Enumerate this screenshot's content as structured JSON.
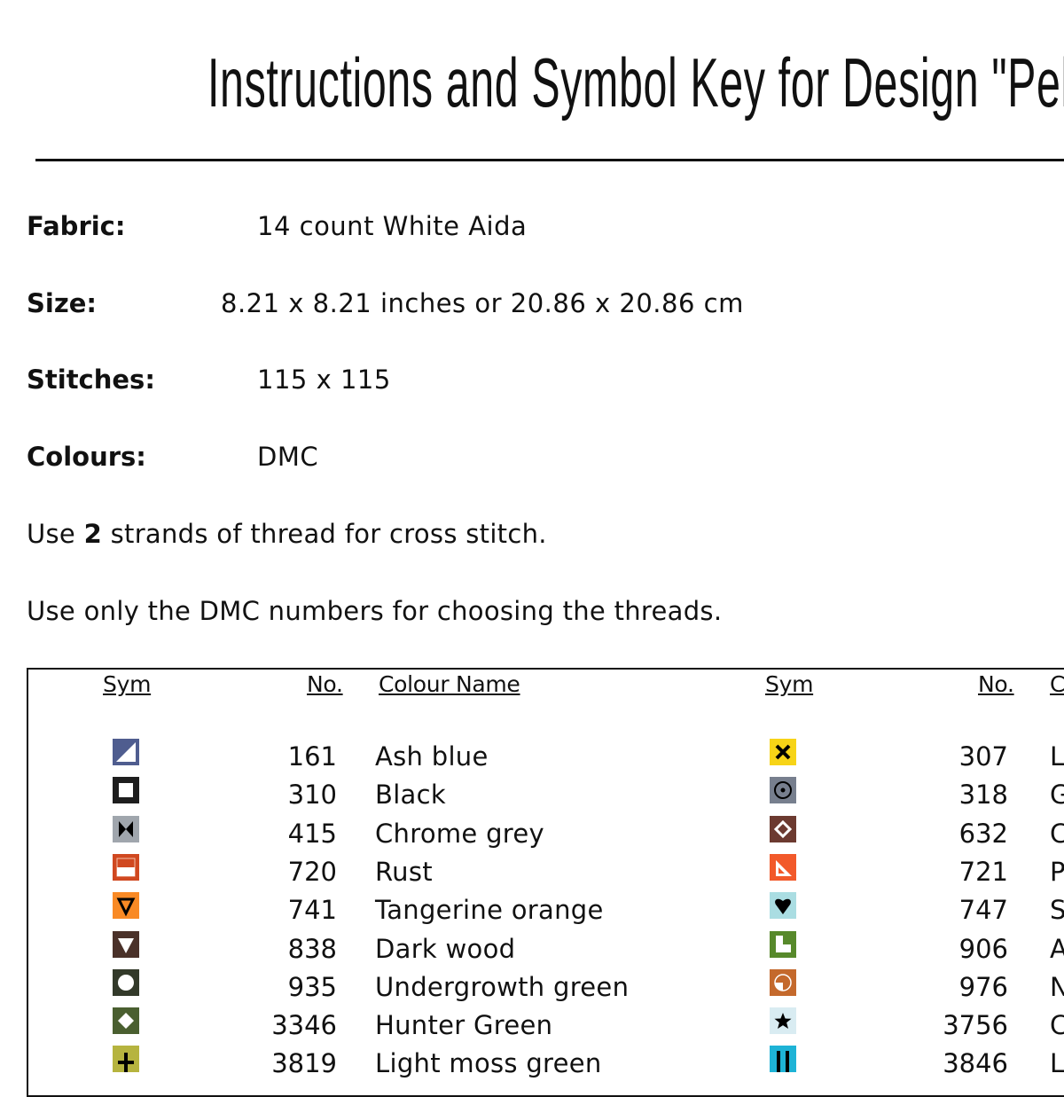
{
  "title": "Instructions and Symbol Key for Design \"Peles",
  "info": [
    {
      "label": "Fabric:",
      "value": "14 count White Aida"
    },
    {
      "label": "Size:",
      "value": "8.21 x 8.21 inches or 20.86 x 20.86 cm"
    },
    {
      "label": "Stitches:",
      "value": "115 x 115"
    },
    {
      "label": "Colours:",
      "value": "DMC"
    }
  ],
  "para1": {
    "pre": "Use ",
    "bold": "2",
    "post": " strands of thread for cross stitch."
  },
  "para2": "Use only the DMC numbers for choosing the threads.",
  "headers": {
    "sym": "Sym",
    "no": "No.",
    "name": "Colour Name",
    "name_right": "C"
  },
  "left": [
    {
      "icon": "half-triangle-icon",
      "color": "#4f5d8f",
      "no": "161",
      "name": "Ash blue"
    },
    {
      "icon": "square-outline-icon",
      "color": "#1e1e1e",
      "no": "310",
      "name": "Black"
    },
    {
      "icon": "bowtie-icon",
      "color": "#a0a6ad",
      "no": "415",
      "name": "Chrome grey"
    },
    {
      "icon": "half-rect-icon",
      "color": "#d04820",
      "no": "720",
      "name": "Rust"
    },
    {
      "icon": "triangle-down-outline-icon",
      "color": "#f98a25",
      "no": "741",
      "name": "Tangerine orange"
    },
    {
      "icon": "triangle-down-icon",
      "color": "#4a3129",
      "no": "838",
      "name": "Dark wood"
    },
    {
      "icon": "circle-icon",
      "color": "#333a2a",
      "no": "935",
      "name": "Undergrowth green"
    },
    {
      "icon": "diamond-icon",
      "color": "#4a5f30",
      "no": "3346",
      "name": "Hunter Green"
    },
    {
      "icon": "plus-icon",
      "color": "#b6b43f",
      "no": "3819",
      "name": "Light moss green"
    }
  ],
  "right": [
    {
      "icon": "x-icon",
      "color": "#f7d417",
      "no": "307",
      "name": "L"
    },
    {
      "icon": "dot-circle-icon",
      "color": "#777f8e",
      "no": "318",
      "name": "G"
    },
    {
      "icon": "diamond-outline-icon",
      "color": "#6c3a30",
      "no": "632",
      "name": "C"
    },
    {
      "icon": "set-square-icon",
      "color": "#f2592a",
      "no": "721",
      "name": "P"
    },
    {
      "icon": "heart-icon",
      "color": "#aadde2",
      "no": "747",
      "name": "S"
    },
    {
      "icon": "l-shape-icon",
      "color": "#57892b",
      "no": "906",
      "name": "A"
    },
    {
      "icon": "quarter-circle-icon",
      "color": "#c4692c",
      "no": "976",
      "name": "N"
    },
    {
      "icon": "star-icon",
      "color": "#d9ecf2",
      "no": "3756",
      "name": "C"
    },
    {
      "icon": "u-shape-icon",
      "color": "#1eb3d6",
      "no": "3846",
      "name": "L"
    }
  ]
}
